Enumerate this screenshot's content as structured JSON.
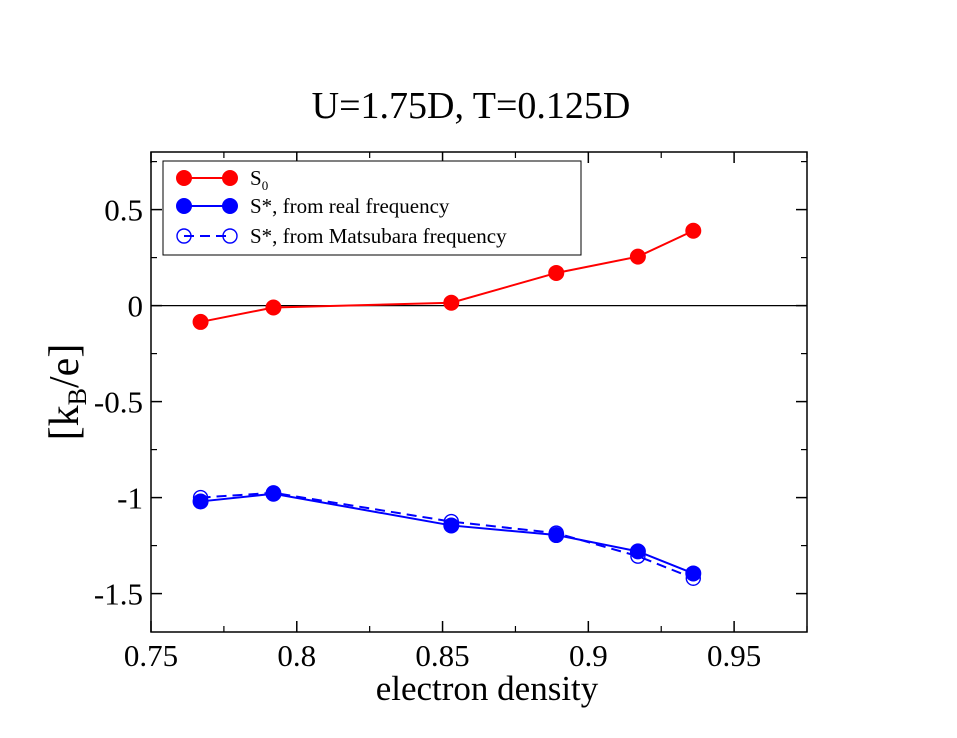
{
  "chart_data": {
    "type": "line",
    "title": "U=1.75D, T=0.125D",
    "xlabel": "electron density",
    "ylabel_main": "[k",
    "ylabel_sub": "B",
    "ylabel_tail": "/e]",
    "xlim": [
      0.75,
      0.975
    ],
    "ylim": [
      -1.7,
      0.8
    ],
    "xticks": [
      0.75,
      0.8,
      0.85,
      0.9,
      0.95
    ],
    "xtick_labels": [
      "0.75",
      "0.8",
      "0.85",
      "0.9",
      "0.95"
    ],
    "yticks": [
      -1.5,
      -1,
      -0.5,
      0,
      0.5
    ],
    "ytick_labels": [
      "-1.5",
      "-1",
      "-0.5",
      "0",
      "0.5"
    ],
    "zero_line": true,
    "grid": false,
    "legend_position": "top-left",
    "x": [
      0.767,
      0.792,
      0.853,
      0.889,
      0.917,
      0.936
    ],
    "series": [
      {
        "name": "S",
        "name_sub": "0",
        "color": "#ff0000",
        "style": "solid",
        "marker": "filled-circle",
        "values": [
          -0.085,
          -0.01,
          0.015,
          0.17,
          0.255,
          0.39
        ]
      },
      {
        "name": "S*, from real frequency",
        "name_sub": "",
        "color": "#0000ff",
        "style": "solid",
        "marker": "filled-circle",
        "values": [
          -1.02,
          -0.98,
          -1.145,
          -1.195,
          -1.28,
          -1.395
        ]
      },
      {
        "name": "S*, from Matsubara frequency",
        "name_sub": "",
        "color": "#0000ff",
        "style": "dashed",
        "marker": "open-circle",
        "values": [
          -1.0,
          -0.975,
          -1.125,
          -1.185,
          -1.305,
          -1.42
        ]
      }
    ]
  }
}
